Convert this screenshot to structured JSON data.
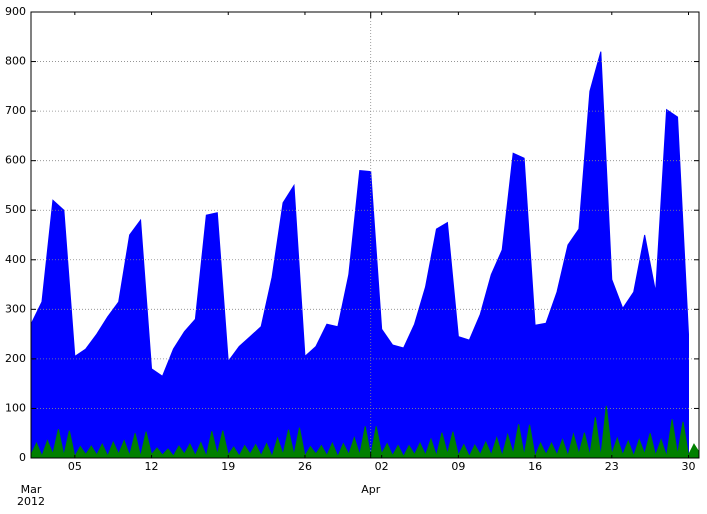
{
  "chart_data": {
    "type": "area",
    "x": [
      "2012-03-01",
      "2012-03-02",
      "2012-03-03",
      "2012-03-04",
      "2012-03-05",
      "2012-03-06",
      "2012-03-07",
      "2012-03-08",
      "2012-03-09",
      "2012-03-10",
      "2012-03-11",
      "2012-03-12",
      "2012-03-13",
      "2012-03-14",
      "2012-03-15",
      "2012-03-16",
      "2012-03-17",
      "2012-03-18",
      "2012-03-19",
      "2012-03-20",
      "2012-03-21",
      "2012-03-22",
      "2012-03-23",
      "2012-03-24",
      "2012-03-25",
      "2012-03-26",
      "2012-03-27",
      "2012-03-28",
      "2012-03-29",
      "2012-03-30",
      "2012-03-31",
      "2012-04-01",
      "2012-04-02",
      "2012-04-03",
      "2012-04-04",
      "2012-04-05",
      "2012-04-06",
      "2012-04-07",
      "2012-04-08",
      "2012-04-09",
      "2012-04-10",
      "2012-04-11",
      "2012-04-12",
      "2012-04-13",
      "2012-04-14",
      "2012-04-15",
      "2012-04-16",
      "2012-04-17",
      "2012-04-18",
      "2012-04-19",
      "2012-04-20",
      "2012-04-21",
      "2012-04-22",
      "2012-04-23",
      "2012-04-24",
      "2012-04-25",
      "2012-04-26",
      "2012-04-27",
      "2012-04-28",
      "2012-04-29",
      "2012-04-30"
    ],
    "series": [
      {
        "color": "#0000ff",
        "values": [
          270,
          315,
          520,
          500,
          205,
          220,
          250,
          285,
          315,
          450,
          480,
          180,
          165,
          220,
          255,
          280,
          490,
          495,
          195,
          225,
          245,
          265,
          365,
          515,
          550,
          205,
          225,
          270,
          265,
          370,
          580,
          578,
          260,
          228,
          222,
          270,
          345,
          462,
          475,
          245,
          238,
          290,
          370,
          420,
          615,
          605,
          268,
          272,
          335,
          430,
          462,
          740,
          820,
          360,
          302,
          335,
          450,
          335,
          703,
          688,
          250
        ]
      },
      {
        "color": "#008000",
        "x": [
          "2012-03-01 00:00",
          "2012-03-01 12:00",
          "2012-03-02 00:00",
          "2012-03-02 12:00",
          "2012-03-03 00:00",
          "2012-03-03 12:00",
          "2012-03-04 00:00",
          "2012-03-04 12:00",
          "2012-03-05 00:00",
          "2012-03-05 12:00",
          "2012-03-06 00:00",
          "2012-03-06 12:00",
          "2012-03-07 00:00",
          "2012-03-07 12:00",
          "2012-03-08 00:00",
          "2012-03-08 12:00",
          "2012-03-09 00:00",
          "2012-03-09 12:00",
          "2012-03-10 00:00",
          "2012-03-10 12:00",
          "2012-03-11 00:00",
          "2012-03-11 12:00",
          "2012-03-12 00:00",
          "2012-03-12 12:00",
          "2012-03-13 00:00",
          "2012-03-13 12:00",
          "2012-03-14 00:00",
          "2012-03-14 12:00",
          "2012-03-15 00:00",
          "2012-03-15 12:00",
          "2012-03-16 00:00",
          "2012-03-16 12:00",
          "2012-03-17 00:00",
          "2012-03-17 12:00",
          "2012-03-18 00:00",
          "2012-03-18 12:00",
          "2012-03-19 00:00",
          "2012-03-19 12:00",
          "2012-03-20 00:00",
          "2012-03-20 12:00",
          "2012-03-21 00:00",
          "2012-03-21 12:00",
          "2012-03-22 00:00",
          "2012-03-22 12:00",
          "2012-03-23 00:00",
          "2012-03-23 12:00",
          "2012-03-24 00:00",
          "2012-03-24 12:00",
          "2012-03-25 00:00",
          "2012-03-25 12:00",
          "2012-03-26 00:00",
          "2012-03-26 12:00",
          "2012-03-27 00:00",
          "2012-03-27 12:00",
          "2012-03-28 00:00",
          "2012-03-28 12:00",
          "2012-03-29 00:00",
          "2012-03-29 12:00",
          "2012-03-30 00:00",
          "2012-03-30 12:00",
          "2012-03-31 00:00",
          "2012-03-31 12:00",
          "2012-04-01 00:00",
          "2012-04-01 12:00",
          "2012-04-02 00:00",
          "2012-04-02 12:00",
          "2012-04-03 00:00",
          "2012-04-03 12:00",
          "2012-04-04 00:00",
          "2012-04-04 12:00",
          "2012-04-05 00:00",
          "2012-04-05 12:00",
          "2012-04-06 00:00",
          "2012-04-06 12:00",
          "2012-04-07 00:00",
          "2012-04-07 12:00",
          "2012-04-08 00:00",
          "2012-04-08 12:00",
          "2012-04-09 00:00",
          "2012-04-09 12:00",
          "2012-04-10 00:00",
          "2012-04-10 12:00",
          "2012-04-11 00:00",
          "2012-04-11 12:00",
          "2012-04-12 00:00",
          "2012-04-12 12:00",
          "2012-04-13 00:00",
          "2012-04-13 12:00",
          "2012-04-14 00:00",
          "2012-04-14 12:00",
          "2012-04-15 00:00",
          "2012-04-15 12:00",
          "2012-04-16 00:00",
          "2012-04-16 12:00",
          "2012-04-17 00:00",
          "2012-04-17 12:00",
          "2012-04-18 00:00",
          "2012-04-18 12:00",
          "2012-04-19 00:00",
          "2012-04-19 12:00",
          "2012-04-20 00:00",
          "2012-04-20 12:00",
          "2012-04-21 00:00",
          "2012-04-21 12:00",
          "2012-04-22 00:00",
          "2012-04-22 12:00",
          "2012-04-23 00:00",
          "2012-04-23 12:00",
          "2012-04-24 00:00",
          "2012-04-24 12:00",
          "2012-04-25 00:00",
          "2012-04-25 12:00",
          "2012-04-26 00:00",
          "2012-04-26 12:00",
          "2012-04-27 00:00",
          "2012-04-27 12:00",
          "2012-04-28 00:00",
          "2012-04-28 12:00",
          "2012-04-29 00:00",
          "2012-04-29 12:00",
          "2012-04-30 00:00",
          "2012-04-30 12:00",
          "2012-04-30 23:00"
        ],
        "values": [
          6,
          30,
          4,
          35,
          8,
          58,
          5,
          55,
          3,
          23,
          7,
          24,
          6,
          28,
          4,
          32,
          8,
          35,
          5,
          50,
          3,
          53,
          7,
          20,
          6,
          18,
          4,
          24,
          8,
          28,
          5,
          31,
          3,
          54,
          7,
          55,
          6,
          22,
          4,
          25,
          8,
          27,
          5,
          29,
          3,
          40,
          7,
          57,
          6,
          61,
          4,
          23,
          8,
          25,
          5,
          30,
          3,
          29,
          7,
          41,
          6,
          64,
          4,
          64,
          8,
          29,
          5,
          25,
          3,
          25,
          7,
          30,
          6,
          38,
          4,
          51,
          8,
          53,
          5,
          27,
          3,
          26,
          7,
          32,
          6,
          41,
          4,
          47,
          8,
          68,
          5,
          67,
          3,
          30,
          7,
          30,
          6,
          37,
          4,
          48,
          8,
          51,
          5,
          82,
          3,
          105,
          7,
          40,
          6,
          34,
          4,
          37,
          8,
          50,
          5,
          37,
          3,
          78,
          7,
          73,
          6,
          28,
          12
        ]
      }
    ],
    "xlim": [
      "2012-03-01 00:00",
      "2012-04-30 23:00"
    ],
    "xticks": [
      {
        "value": "2012-03-05",
        "label": "05"
      },
      {
        "value": "2012-03-12",
        "label": "12"
      },
      {
        "value": "2012-03-19",
        "label": "19"
      },
      {
        "value": "2012-03-26",
        "label": "26"
      },
      {
        "value": "2012-04-02",
        "label": "02"
      },
      {
        "value": "2012-04-09",
        "label": "09"
      },
      {
        "value": "2012-04-16",
        "label": "16"
      },
      {
        "value": "2012-04-23",
        "label": "23"
      },
      {
        "value": "2012-04-30",
        "label": "30"
      }
    ],
    "month_ticks": [
      {
        "value": "2012-03-01",
        "label": "Mar\n2012"
      },
      {
        "value": "2012-04-01",
        "label": "Apr"
      }
    ],
    "ylim": [
      0,
      900
    ],
    "yticks": [
      0,
      100,
      200,
      300,
      400,
      500,
      600,
      700,
      800,
      900
    ],
    "grid": true
  }
}
